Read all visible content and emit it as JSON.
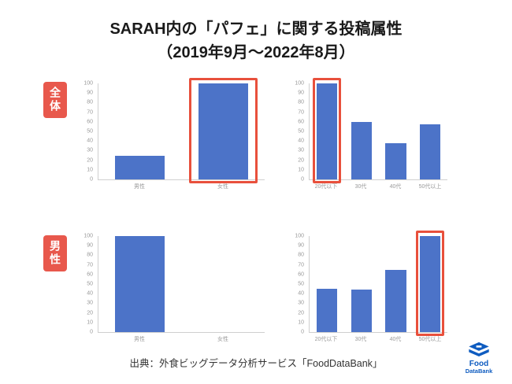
{
  "title": {
    "line1": "SARAH内の「パフェ」に関する投稿属性",
    "line2": "（2019年9月〜2022年8月）"
  },
  "groups": [
    {
      "label": "全体"
    },
    {
      "label": "男性"
    }
  ],
  "chart_data": [
    {
      "type": "bar",
      "group": "全体",
      "categories": [
        "男性",
        "女性"
      ],
      "values": [
        25,
        100
      ],
      "highlight_index": 1,
      "highlight_category": "女性",
      "ylim": [
        0,
        100
      ],
      "ytick_step": 10,
      "grid": false
    },
    {
      "type": "bar",
      "group": "全体",
      "categories": [
        "20代以下",
        "30代",
        "40代",
        "50代以上"
      ],
      "values": [
        100,
        60,
        38,
        57
      ],
      "highlight_index": 0,
      "highlight_category": "20代以下",
      "ylim": [
        0,
        100
      ],
      "ytick_step": 10,
      "grid": false
    },
    {
      "type": "bar",
      "group": "男性",
      "categories": [
        "男性",
        "女性"
      ],
      "values": [
        100,
        0
      ],
      "highlight_index": null,
      "ylim": [
        0,
        100
      ],
      "ytick_step": 10,
      "grid": false
    },
    {
      "type": "bar",
      "group": "男性",
      "categories": [
        "20代以下",
        "30代",
        "40代",
        "50代以上"
      ],
      "values": [
        45,
        44,
        65,
        100
      ],
      "highlight_index": 3,
      "highlight_category": "50代以上",
      "ylim": [
        0,
        100
      ],
      "ytick_step": 10,
      "grid": false
    }
  ],
  "footer": "出典：外食ビッグデータ分析サービス「FoodDataBank」",
  "logo": {
    "line1": "Food",
    "line2": "DataBank"
  },
  "colors": {
    "bar": "#4c73c8",
    "highlight": "#e8503c",
    "badge": "#e8584c"
  }
}
